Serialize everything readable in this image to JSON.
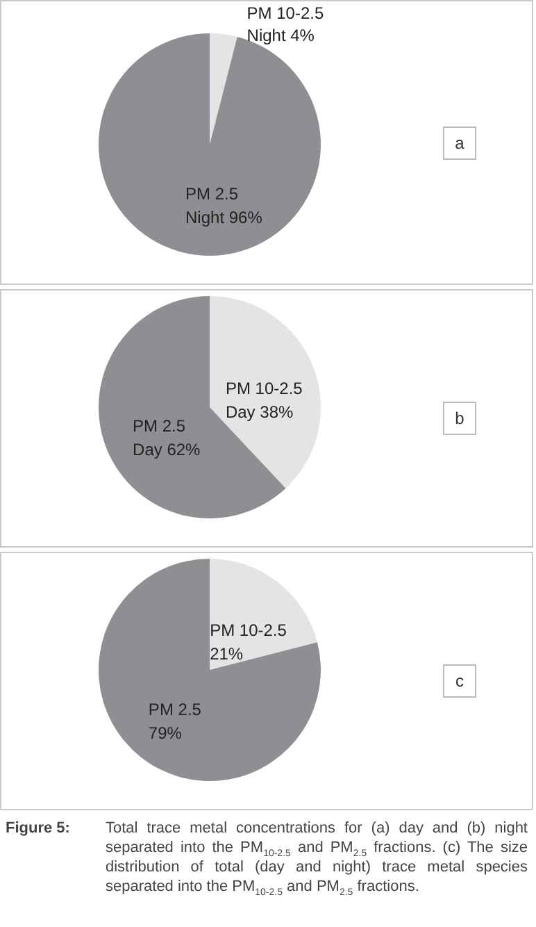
{
  "chart_data": [
    {
      "type": "pie",
      "categories": [
        "PM 10-2.5",
        "PM 2.5"
      ],
      "values": [
        4,
        96
      ],
      "value_labels": [
        "Night 4%",
        "Night 96%"
      ],
      "colors": [
        "#e4e4e5",
        "#8e8f92"
      ],
      "annotations": [
        "a"
      ]
    },
    {
      "type": "pie",
      "categories": [
        "PM 10-2.5",
        "PM 2.5"
      ],
      "values": [
        38,
        62
      ],
      "value_labels": [
        "Day 38%",
        "Day 62%"
      ],
      "colors": [
        "#e4e4e5",
        "#8e8f92"
      ],
      "annotations": [
        "b"
      ]
    },
    {
      "type": "pie",
      "categories": [
        "PM 10-2.5",
        "PM 2.5"
      ],
      "values": [
        21,
        79
      ],
      "value_labels": [
        "21%",
        "79%"
      ],
      "colors": [
        "#e4e4e5",
        "#8e8f92"
      ],
      "annotations": [
        "c",
        "Figure 5:",
        "Total trace metal concentrations for (a) day and (b) night separated into the PM$_{10-2.5}$ and PM$_{2.5}$ fractions. (c) The size distribution of total (day and night) trace metal species separated into the PM$_{10-2.5}$ and PM$_{2.5}$ fractions."
      ]
    }
  ]
}
